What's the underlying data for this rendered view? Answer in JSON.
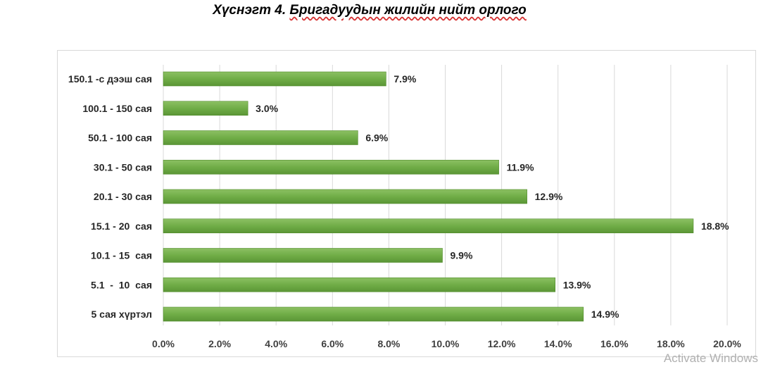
{
  "title": {
    "prefix": "Хүснэгт 4. ",
    "underlined": "Бригадуудын жилийн нийт орлого"
  },
  "chart_data": {
    "type": "bar",
    "orientation": "horizontal",
    "title": "Хүснэгт 4. Бригадуудын жилийн нийт орлого",
    "categories": [
      "150.1 -с дээш сая",
      "100.1 - 150 сая",
      "50.1 - 100 сая",
      "30.1 - 50 сая",
      "20.1 - 30 сая",
      "15.1 - 20  сая",
      "10.1 - 15  сая",
      "5.1  -  10  сая",
      "5 сая хүртэл"
    ],
    "values": [
      7.9,
      3.0,
      6.9,
      11.9,
      12.9,
      18.8,
      9.9,
      13.9,
      14.9
    ],
    "value_labels": [
      "7.9%",
      "3.0%",
      "6.9%",
      "11.9%",
      "12.9%",
      "18.8%",
      "9.9%",
      "13.9%",
      "14.9%"
    ],
    "xlim": [
      0,
      20
    ],
    "x_ticks": [
      "0.0%",
      "2.0%",
      "4.0%",
      "6.0%",
      "8.0%",
      "10.0%",
      "12.0%",
      "14.0%",
      "16.0%",
      "18.0%",
      "20.0%"
    ],
    "grid": "vertical",
    "bar_color": "#70ad47",
    "bar_color_dark": "#4f8a2a"
  },
  "watermark": "Activate Windows"
}
